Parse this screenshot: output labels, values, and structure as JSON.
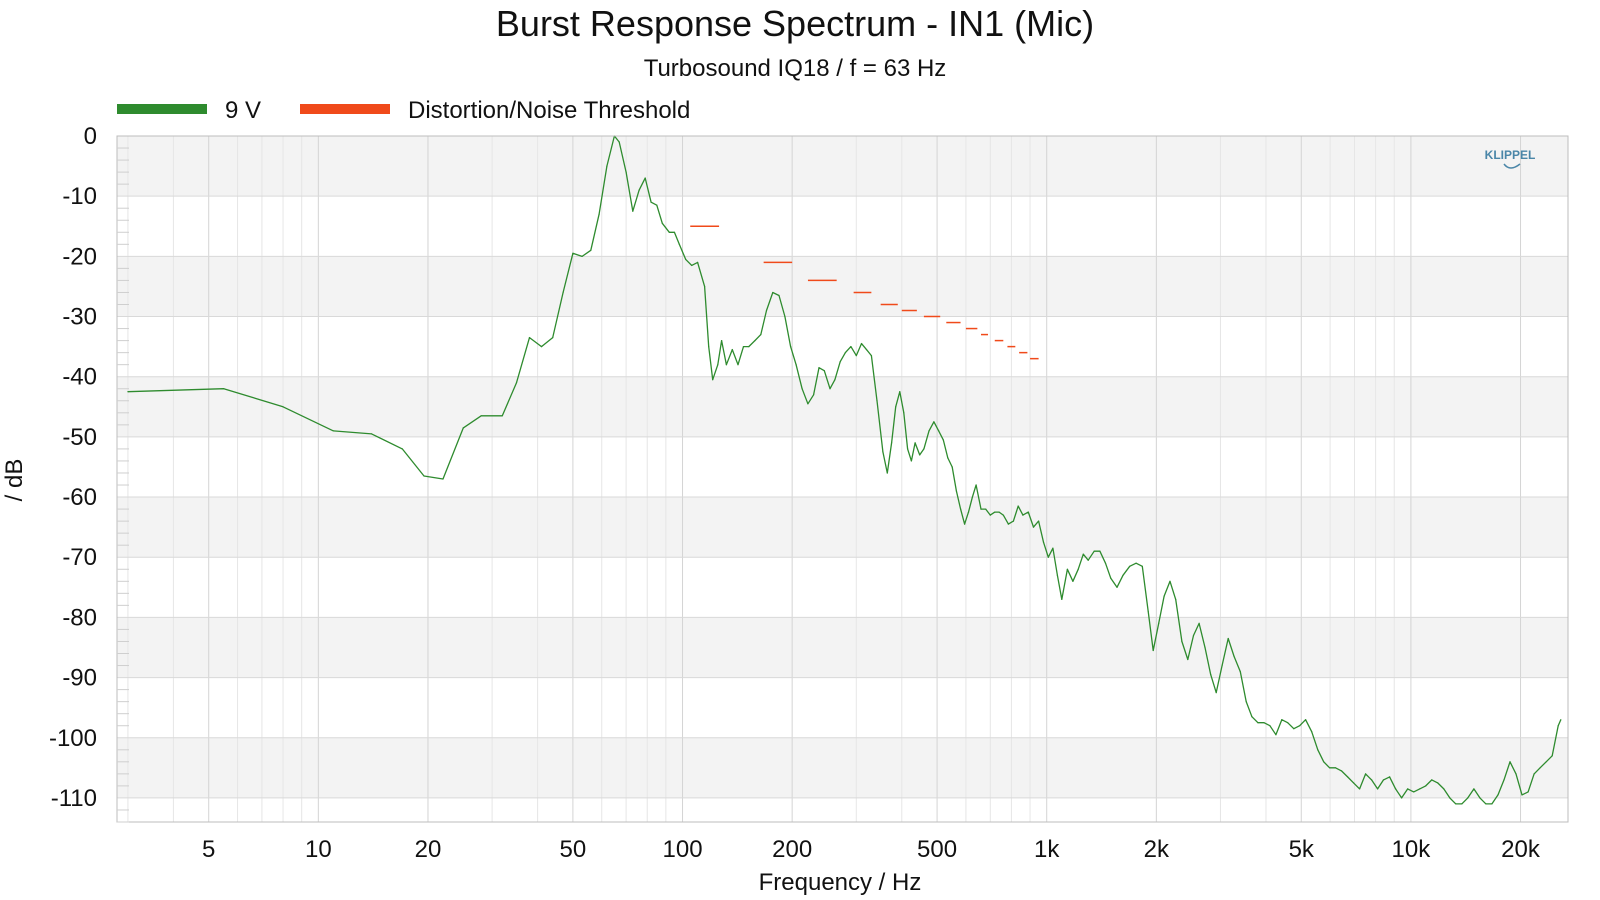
{
  "chart_data": {
    "type": "line",
    "title": "Burst Response Spectrum - IN1 (Mic)",
    "subtitle": "Turbosound IQ18 / f = 63 Hz",
    "xlabel": "Frequency / Hz",
    "ylabel": "/ dB",
    "x_scale": "log",
    "xlim": [
      2.8,
      27000
    ],
    "ylim": [
      -114,
      0
    ],
    "x_ticks": [
      {
        "value": 5,
        "label": "5"
      },
      {
        "value": 10,
        "label": "10"
      },
      {
        "value": 20,
        "label": "20"
      },
      {
        "value": 50,
        "label": "50"
      },
      {
        "value": 100,
        "label": "100"
      },
      {
        "value": 200,
        "label": "200"
      },
      {
        "value": 500,
        "label": "500"
      },
      {
        "value": 1000,
        "label": "1k"
      },
      {
        "value": 2000,
        "label": "2k"
      },
      {
        "value": 5000,
        "label": "5k"
      },
      {
        "value": 10000,
        "label": "10k"
      },
      {
        "value": 20000,
        "label": "20k"
      }
    ],
    "y_ticks": [
      0,
      -10,
      -20,
      -30,
      -40,
      -50,
      -60,
      -70,
      -80,
      -90,
      -100,
      -110
    ],
    "grid": true,
    "legend_position": "top-left",
    "logo": "KLIPPEL",
    "series": [
      {
        "name": "9 V",
        "color": "#2e8b2e",
        "points": [
          [
            3,
            -42.5
          ],
          [
            5.5,
            -42
          ],
          [
            8,
            -45
          ],
          [
            11,
            -49
          ],
          [
            14,
            -49.5
          ],
          [
            17,
            -52
          ],
          [
            19.5,
            -56.5
          ],
          [
            22,
            -57
          ],
          [
            25,
            -48.5
          ],
          [
            28,
            -46.5
          ],
          [
            32,
            -46.5
          ],
          [
            35,
            -41
          ],
          [
            38,
            -33.5
          ],
          [
            41,
            -35
          ],
          [
            44,
            -33.5
          ],
          [
            47,
            -26
          ],
          [
            50,
            -19.5
          ],
          [
            53,
            -20
          ],
          [
            56,
            -19
          ],
          [
            59,
            -13
          ],
          [
            62,
            -5
          ],
          [
            65,
            0
          ],
          [
            67,
            -1
          ],
          [
            70,
            -6
          ],
          [
            73,
            -12.5
          ],
          [
            76,
            -9
          ],
          [
            79,
            -7
          ],
          [
            82,
            -11
          ],
          [
            85,
            -11.5
          ],
          [
            88,
            -14.5
          ],
          [
            92,
            -16
          ],
          [
            95,
            -16
          ],
          [
            98,
            -18
          ],
          [
            102,
            -20.5
          ],
          [
            106,
            -21.5
          ],
          [
            110,
            -21
          ],
          [
            115,
            -25
          ],
          [
            118,
            -35
          ],
          [
            121,
            -40.5
          ],
          [
            125,
            -38
          ],
          [
            128,
            -34
          ],
          [
            132,
            -38
          ],
          [
            137,
            -35.5
          ],
          [
            142,
            -38
          ],
          [
            147,
            -35
          ],
          [
            152,
            -35
          ],
          [
            158,
            -34
          ],
          [
            164,
            -33
          ],
          [
            170,
            -29
          ],
          [
            177,
            -26
          ],
          [
            184,
            -26.5
          ],
          [
            191,
            -30
          ],
          [
            198,
            -35
          ],
          [
            205,
            -38
          ],
          [
            213,
            -42
          ],
          [
            221,
            -44.5
          ],
          [
            229,
            -43
          ],
          [
            237,
            -38.5
          ],
          [
            245,
            -39
          ],
          [
            254,
            -42
          ],
          [
            262,
            -40.5
          ],
          [
            271,
            -37.5
          ],
          [
            280,
            -36
          ],
          [
            290,
            -35
          ],
          [
            300,
            -36.5
          ],
          [
            310,
            -34.5
          ],
          [
            320,
            -35.5
          ],
          [
            330,
            -36.5
          ],
          [
            342,
            -44
          ],
          [
            355,
            -52.5
          ],
          [
            365,
            -56
          ],
          [
            375,
            -51
          ],
          [
            385,
            -45
          ],
          [
            395,
            -42.5
          ],
          [
            405,
            -46
          ],
          [
            415,
            -52
          ],
          [
            425,
            -54
          ],
          [
            435,
            -51
          ],
          [
            448,
            -53
          ],
          [
            460,
            -52
          ],
          [
            475,
            -49
          ],
          [
            490,
            -47.5
          ],
          [
            505,
            -49
          ],
          [
            520,
            -50.5
          ],
          [
            535,
            -53.5
          ],
          [
            550,
            -55
          ],
          [
            565,
            -59
          ],
          [
            580,
            -62
          ],
          [
            595,
            -64.5
          ],
          [
            610,
            -62.5
          ],
          [
            625,
            -60
          ],
          [
            640,
            -58
          ],
          [
            660,
            -62
          ],
          [
            680,
            -62
          ],
          [
            700,
            -63
          ],
          [
            720,
            -62.5
          ],
          [
            740,
            -62.5
          ],
          [
            760,
            -63
          ],
          [
            785,
            -64.5
          ],
          [
            810,
            -64
          ],
          [
            835,
            -61.5
          ],
          [
            860,
            -63
          ],
          [
            890,
            -62.5
          ],
          [
            920,
            -65
          ],
          [
            950,
            -64
          ],
          [
            980,
            -67.5
          ],
          [
            1010,
            -70
          ],
          [
            1040,
            -68.5
          ],
          [
            1070,
            -73
          ],
          [
            1100,
            -77
          ],
          [
            1140,
            -72
          ],
          [
            1180,
            -74
          ],
          [
            1220,
            -72
          ],
          [
            1260,
            -69.5
          ],
          [
            1300,
            -70.5
          ],
          [
            1350,
            -69
          ],
          [
            1400,
            -69
          ],
          [
            1450,
            -71
          ],
          [
            1500,
            -73.5
          ],
          [
            1560,
            -75
          ],
          [
            1620,
            -73
          ],
          [
            1690,
            -71.5
          ],
          [
            1760,
            -71
          ],
          [
            1830,
            -71.5
          ],
          [
            1900,
            -79
          ],
          [
            1960,
            -85.5
          ],
          [
            2030,
            -81
          ],
          [
            2100,
            -76.5
          ],
          [
            2180,
            -74
          ],
          [
            2260,
            -77
          ],
          [
            2350,
            -84
          ],
          [
            2440,
            -87
          ],
          [
            2530,
            -83
          ],
          [
            2620,
            -81
          ],
          [
            2720,
            -85
          ],
          [
            2820,
            -89.5
          ],
          [
            2920,
            -92.5
          ],
          [
            3030,
            -88
          ],
          [
            3150,
            -83.5
          ],
          [
            3270,
            -86.5
          ],
          [
            3400,
            -89
          ],
          [
            3530,
            -94
          ],
          [
            3660,
            -96.5
          ],
          [
            3800,
            -97.5
          ],
          [
            3950,
            -97.5
          ],
          [
            4100,
            -98
          ],
          [
            4260,
            -99.5
          ],
          [
            4420,
            -97
          ],
          [
            4590,
            -97.5
          ],
          [
            4770,
            -98.5
          ],
          [
            4950,
            -98
          ],
          [
            5140,
            -97
          ],
          [
            5340,
            -99
          ],
          [
            5550,
            -102
          ],
          [
            5760,
            -104
          ],
          [
            5980,
            -105
          ],
          [
            6210,
            -105
          ],
          [
            6450,
            -105.5
          ],
          [
            6700,
            -106.5
          ],
          [
            6960,
            -107.5
          ],
          [
            7230,
            -108.5
          ],
          [
            7510,
            -106
          ],
          [
            7800,
            -107
          ],
          [
            8100,
            -108.5
          ],
          [
            8410,
            -107
          ],
          [
            8740,
            -106.5
          ],
          [
            9080,
            -108.5
          ],
          [
            9430,
            -110
          ],
          [
            9800,
            -108.5
          ],
          [
            10180,
            -109
          ],
          [
            10570,
            -108.5
          ],
          [
            10980,
            -108
          ],
          [
            11410,
            -107
          ],
          [
            11850,
            -107.5
          ],
          [
            12310,
            -108.5
          ],
          [
            12790,
            -110
          ],
          [
            13280,
            -111
          ],
          [
            13800,
            -111
          ],
          [
            14330,
            -110
          ],
          [
            14890,
            -108.5
          ],
          [
            15470,
            -110
          ],
          [
            16070,
            -111
          ],
          [
            16690,
            -111
          ],
          [
            17340,
            -109.5
          ],
          [
            18010,
            -107
          ],
          [
            18710,
            -104
          ],
          [
            19440,
            -106
          ],
          [
            20190,
            -109.5
          ],
          [
            20980,
            -109
          ],
          [
            21790,
            -106
          ],
          [
            22640,
            -105
          ],
          [
            23520,
            -104
          ],
          [
            24430,
            -103
          ],
          [
            25380,
            -98
          ],
          [
            25800,
            -97
          ]
        ]
      },
      {
        "name": "Distortion/Noise Threshold",
        "color": "#f04a1a",
        "segments": [
          {
            "x0": 105,
            "x1": 126,
            "y": -15
          },
          {
            "x0": 167,
            "x1": 200,
            "y": -21
          },
          {
            "x0": 221,
            "x1": 265,
            "y": -24
          },
          {
            "x0": 295,
            "x1": 330,
            "y": -26
          },
          {
            "x0": 350,
            "x1": 390,
            "y": -28
          },
          {
            "x0": 400,
            "x1": 440,
            "y": -29
          },
          {
            "x0": 460,
            "x1": 510,
            "y": -30
          },
          {
            "x0": 530,
            "x1": 580,
            "y": -31
          },
          {
            "x0": 600,
            "x1": 645,
            "y": -32
          },
          {
            "x0": 660,
            "x1": 690,
            "y": -33
          },
          {
            "x0": 720,
            "x1": 760,
            "y": -34
          },
          {
            "x0": 780,
            "x1": 820,
            "y": -35
          },
          {
            "x0": 840,
            "x1": 885,
            "y": -36
          },
          {
            "x0": 900,
            "x1": 950,
            "y": -37
          }
        ]
      }
    ]
  }
}
